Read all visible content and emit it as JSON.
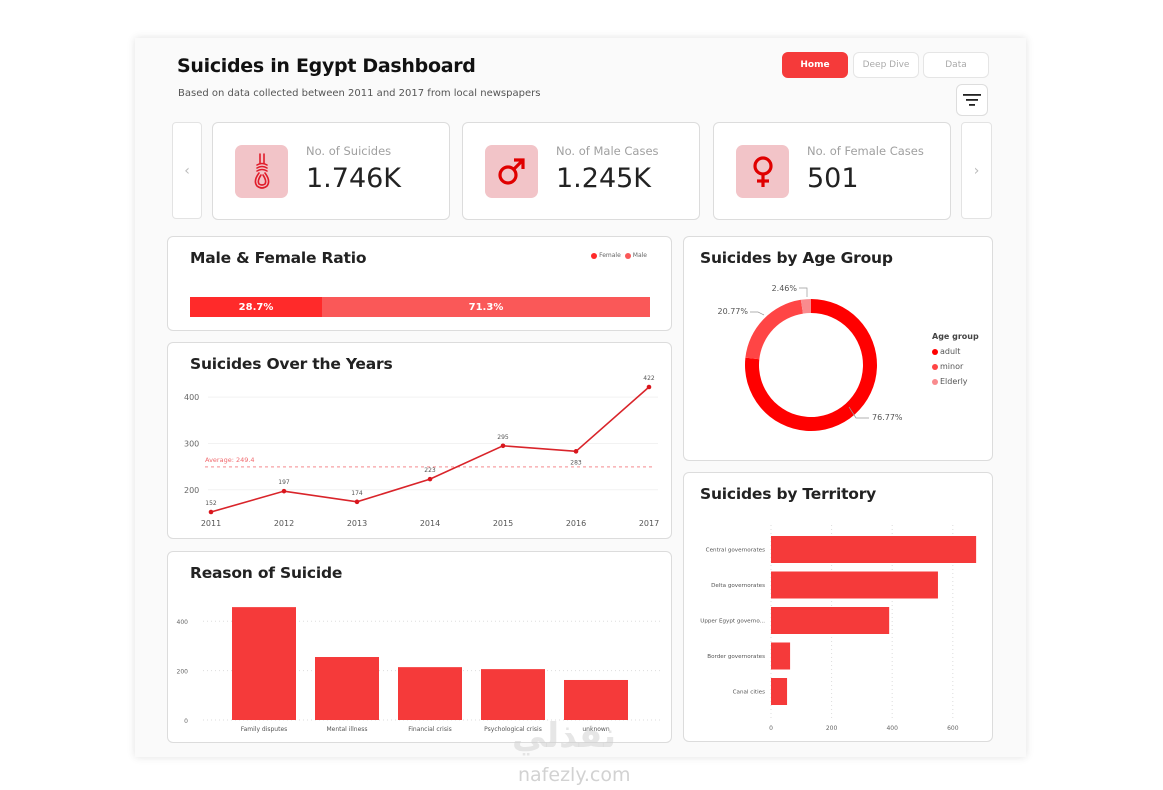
{
  "header": {
    "title": "Suicides in Egypt Dashboard",
    "subtitle": "Based on data collected between 2011 and 2017 from local newspapers"
  },
  "nav": {
    "buttons": [
      {
        "label": "Home",
        "active": true
      },
      {
        "label": "Deep Dive",
        "active": false
      },
      {
        "label": "Data",
        "active": false
      }
    ],
    "filter_icon": "filter-icon"
  },
  "kpis": [
    {
      "label": "No. of Suicides",
      "value": "1.746K",
      "icon": "noose-icon"
    },
    {
      "label": "No. of Male Cases",
      "value": "1.245K",
      "icon": "male-icon"
    },
    {
      "label": "No. of Female Cases",
      "value": "501",
      "icon": "female-icon"
    }
  ],
  "carousel": {
    "prev": "‹",
    "next": "›"
  },
  "colors": {
    "accent": "#f53a3a",
    "primary_red": "#ff0000",
    "icon_bg": "#f2c4c8"
  },
  "chart_data": [
    {
      "id": "ratio",
      "type": "bar",
      "title": "Male & Female Ratio",
      "stacked": true,
      "legend": [
        {
          "name": "Female",
          "color": "#ff2a2a"
        },
        {
          "name": "Male",
          "color": "#fa5858"
        }
      ],
      "series": [
        {
          "name": "Female",
          "value": 28.7,
          "label": "28.7%"
        },
        {
          "name": "Male",
          "value": 71.3,
          "label": "71.3%"
        }
      ]
    },
    {
      "id": "years",
      "type": "line",
      "title": "Suicides Over the Years",
      "x": [
        "2011",
        "2012",
        "2013",
        "2014",
        "2015",
        "2016",
        "2017"
      ],
      "values": [
        152,
        197,
        174,
        223,
        295,
        283,
        422
      ],
      "yticks": [
        200,
        300,
        400
      ],
      "ylim": [
        140,
        440
      ],
      "average": 249.4,
      "average_label": "Average: 249.4"
    },
    {
      "id": "reasons",
      "type": "bar",
      "title": "Reason of Suicide",
      "categories": [
        "Family disputes",
        "Mental illness",
        "Financial crisis",
        "Psychological crisis",
        "unknown"
      ],
      "values": [
        457,
        255,
        214,
        206,
        162
      ],
      "yticks": [
        0,
        200,
        400
      ],
      "ylim": [
        0,
        480
      ],
      "grid": true
    },
    {
      "id": "age",
      "type": "pie",
      "title": "Suicides by Age Group",
      "legend_title": "Age group",
      "slices": [
        {
          "name": "adult",
          "value": 76.77,
          "label": "76.77%",
          "color": "#ff0000"
        },
        {
          "name": "minor",
          "value": 20.77,
          "label": "20.77%",
          "color": "#ff4545"
        },
        {
          "name": "Elderly",
          "value": 2.46,
          "label": "2.46%",
          "color": "#f98b8e"
        }
      ],
      "donut": true
    },
    {
      "id": "territory",
      "type": "bar",
      "orientation": "horizontal",
      "title": "Suicides by Territory",
      "categories": [
        "Central governorates",
        "Delta governorates",
        "Upper Egypt governo...",
        "Border governorates",
        "Canal cities"
      ],
      "values": [
        677,
        551,
        390,
        63,
        53
      ],
      "xticks": [
        0,
        200,
        400,
        600
      ],
      "xlim": [
        0,
        680
      ],
      "grid": true
    }
  ],
  "watermark": {
    "arabic": "نفذلي",
    "latin": "nafezly.com"
  }
}
